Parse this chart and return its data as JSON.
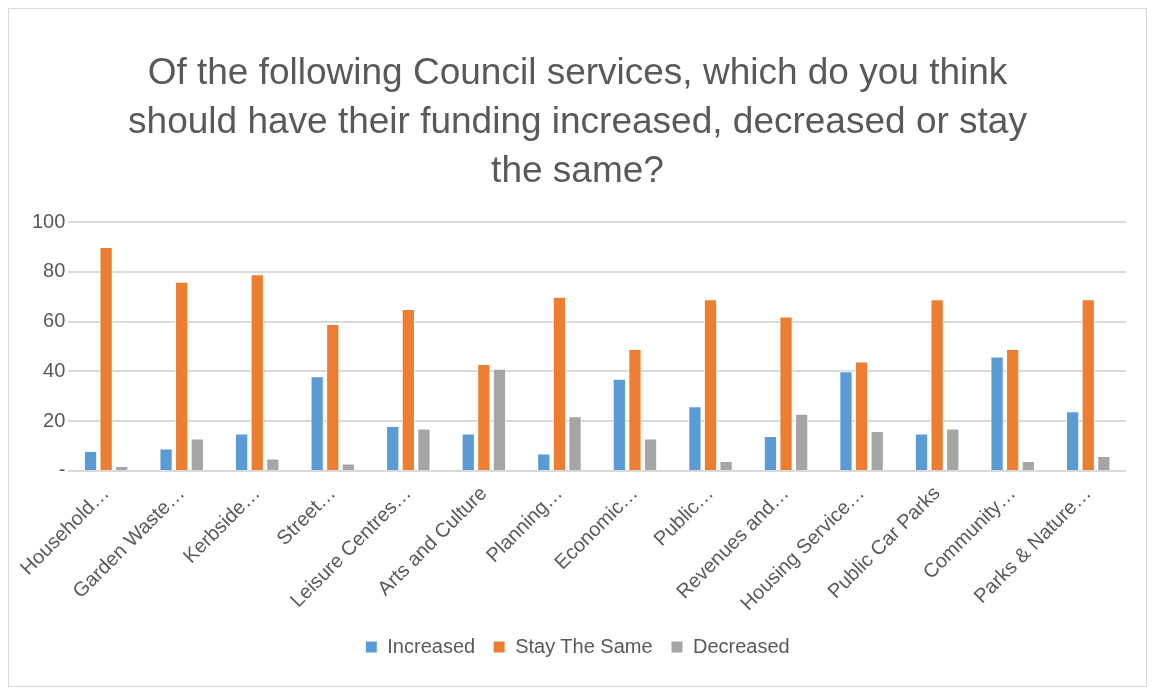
{
  "chart_data": {
    "type": "bar",
    "title": "Of the following Council services, which do you think should have their funding increased, decreased or stay the same?",
    "categories": [
      "Household…",
      "Garden Waste…",
      "Kerbside…",
      "Street…",
      "Leisure Centres…",
      "Arts and Culture",
      "Planning…",
      "Economic…",
      "Public…",
      "Revenues and…",
      "Housing Service…",
      "Public Car Parks",
      "Community…",
      "Parks & Nature…"
    ],
    "series": [
      {
        "name": "Increased",
        "color": "#5b9bd5",
        "values": [
          8,
          9,
          15,
          38,
          18,
          15,
          7,
          37,
          26,
          14,
          40,
          15,
          46,
          24
        ]
      },
      {
        "name": "Stay The Same",
        "color": "#ed7d31",
        "values": [
          90,
          76,
          79,
          59,
          65,
          43,
          70,
          49,
          69,
          62,
          44,
          69,
          49,
          69
        ]
      },
      {
        "name": "Decreased",
        "color": "#a5a5a5",
        "values": [
          2,
          13,
          5,
          3,
          17,
          41,
          22,
          13,
          4,
          23,
          16,
          17,
          4,
          6
        ]
      }
    ],
    "ylim": [
      0,
      100
    ],
    "yticks": [
      {
        "value": 0,
        "label": "-"
      },
      20,
      40,
      60,
      80,
      100
    ],
    "grid": "y",
    "legend": "bottom"
  }
}
